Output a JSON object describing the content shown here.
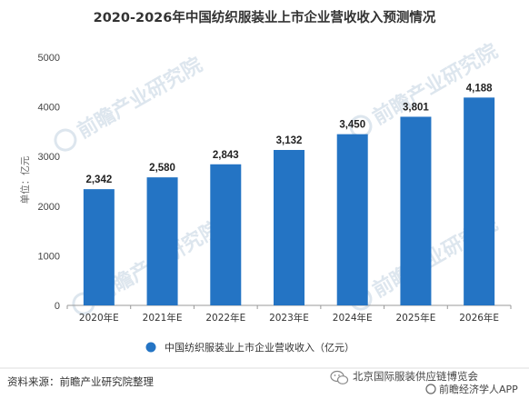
{
  "chart_data": {
    "type": "bar",
    "title": "2020-2026年中国纺织服装业上市企业营收收入预测情况",
    "ylabel": "单位：亿元",
    "categories": [
      "2020年E",
      "2021年E",
      "2022年E",
      "2023年E",
      "2024年E",
      "2025年E",
      "2026年E"
    ],
    "series": [
      {
        "name": "中国纺织服装业上市企业营收收入（亿元）",
        "values": [
          2342,
          2580,
          2843,
          3132,
          3450,
          3801,
          4188
        ]
      }
    ],
    "data_labels": [
      "2,342",
      "2,580",
      "2,843",
      "3,132",
      "3,450",
      "3,801",
      "4,188"
    ],
    "ylim": [
      0,
      5000
    ],
    "yticks": [
      0,
      1000,
      2000,
      3000,
      4000,
      5000
    ],
    "grid": false,
    "legend": "bottom-center",
    "bar_color": "#2474c4"
  },
  "source": "资料来源：前瞻产业研究院整理",
  "footer_text": "北京国际服装供应链博览会",
  "watermark": {
    "brand": "前瞻产业研究院",
    "app_label": "前瞻经济学人APP"
  },
  "colors": {
    "bar": "#2474c4",
    "axis": "#999999",
    "watermark": "#9fb7cf"
  }
}
